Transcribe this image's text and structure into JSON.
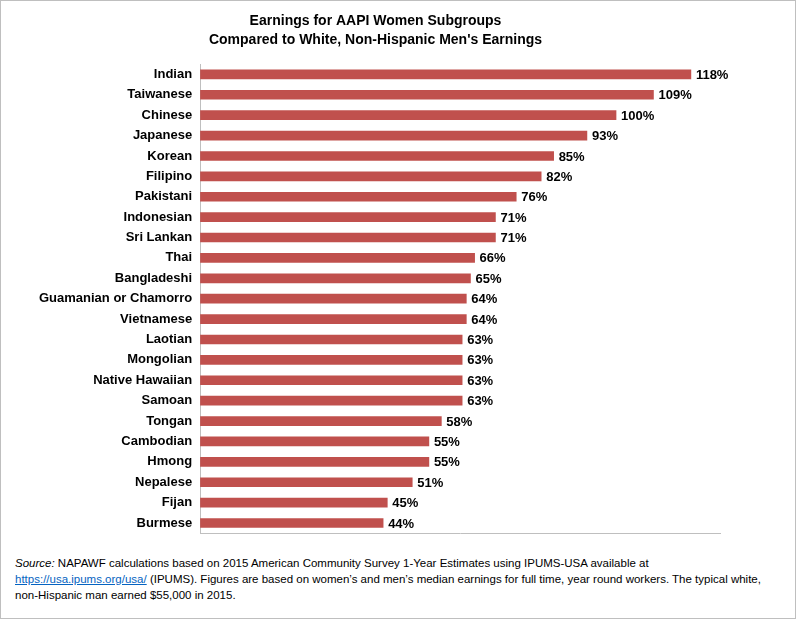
{
  "chart_data": {
    "type": "bar",
    "title": [
      "Earnings for AAPI Women Subgroups",
      "Compared to White, Non-Hispanic Men's Earnings"
    ],
    "orientation": "horizontal",
    "categories": [
      "Indian",
      "Taiwanese",
      "Chinese",
      "Japanese",
      "Korean",
      "Filipino",
      "Pakistani",
      "Indonesian",
      "Sri Lankan",
      "Thai",
      "Bangladeshi",
      "Guamanian or Chamorro",
      "Vietnamese",
      "Laotian",
      "Mongolian",
      "Native Hawaiian",
      "Samoan",
      "Tongan",
      "Cambodian",
      "Hmong",
      "Nepalese",
      "Fijan",
      "Burmese"
    ],
    "values": [
      118,
      109,
      100,
      93,
      85,
      82,
      76,
      71,
      71,
      66,
      65,
      64,
      64,
      63,
      63,
      63,
      63,
      58,
      55,
      55,
      51,
      45,
      44
    ],
    "value_labels": [
      "118%",
      "109%",
      "100%",
      "93%",
      "85%",
      "82%",
      "76%",
      "71%",
      "71%",
      "66%",
      "65%",
      "64%",
      "64%",
      "63%",
      "63%",
      "63%",
      "63%",
      "58%",
      "55%",
      "55%",
      "51%",
      "45%",
      "44%"
    ],
    "color": "#c0504d",
    "xlim": [
      0,
      125
    ],
    "grid": false,
    "data_labels": true,
    "tick_labels": "y",
    "annotations": [
      "Source: NAPAWF calculations based on 2015 American Community Survey 1-Year Estimates using IPUMS-USA available at https://usa.ipums.org/usa/ (IPUMS). Figures are based on women’s and men’s median earnings for full time, year round workers. The typical white, non-Hispanic man earned $55,000 in 2015."
    ]
  }
}
